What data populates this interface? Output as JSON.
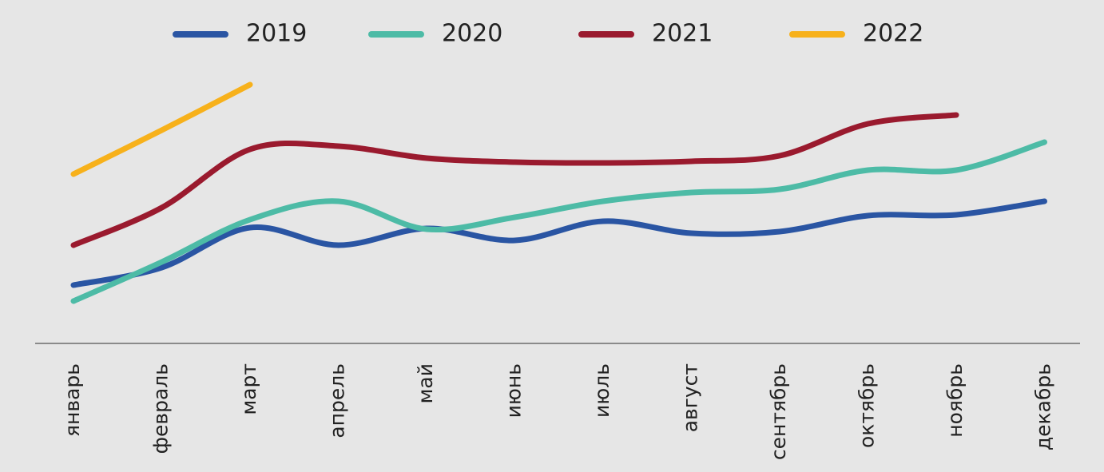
{
  "chart_data": {
    "type": "line",
    "categories": [
      "январь",
      "февраль",
      "март",
      "апрель",
      "май",
      "июнь",
      "июль",
      "август",
      "сентябрь",
      "октябрь",
      "ноябрь",
      "декабрь"
    ],
    "series": [
      {
        "name": "2019",
        "color": "#2a55a3",
        "values": [
          73,
          95,
          145,
          123,
          144,
          129,
          153,
          138,
          140,
          160,
          161,
          178
        ]
      },
      {
        "name": "2020",
        "color": "#4dbba6",
        "values": [
          53,
          102,
          155,
          178,
          143,
          158,
          178,
          189,
          193,
          217,
          217,
          252
        ]
      },
      {
        "name": "2021",
        "color": "#9a1a2e",
        "values": [
          123,
          170,
          243,
          247,
          232,
          227,
          226,
          228,
          235,
          275,
          286,
          null
        ]
      },
      {
        "name": "2022",
        "color": "#f7b11b",
        "values": [
          212,
          267,
          324,
          null,
          null,
          null,
          null,
          null,
          null,
          null,
          null,
          null
        ]
      }
    ],
    "ylim": [
      0,
      350
    ],
    "legend": "top"
  }
}
